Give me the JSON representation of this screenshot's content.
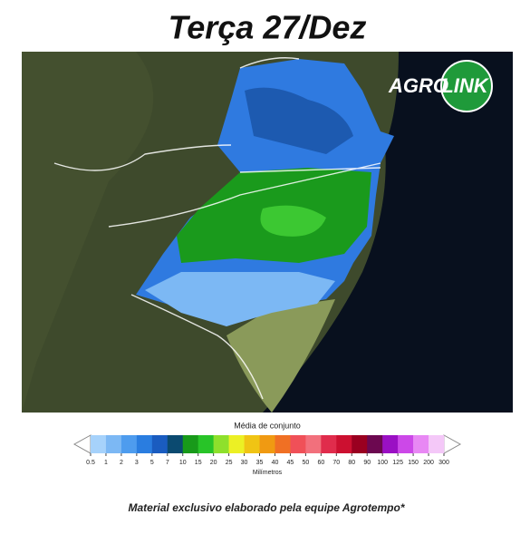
{
  "header": {
    "title": "Terça 27/Dez"
  },
  "logo": {
    "left": "AGRO",
    "right": "LINK"
  },
  "colorbar": {
    "title": "Média de conjunto",
    "ticks": [
      0.5,
      1,
      2,
      3,
      5,
      7,
      10,
      15,
      20,
      25,
      30,
      35,
      40,
      45,
      50,
      60,
      70,
      80,
      90,
      100,
      125,
      150,
      200,
      300
    ],
    "colors": [
      "#a6d2fb",
      "#7cb8f4",
      "#4e9cee",
      "#2a7de0",
      "#1a5cc0",
      "#0b4a70",
      "#189a1a",
      "#28c428",
      "#8ee02c",
      "#ecf024",
      "#f0c414",
      "#f09a12",
      "#f07024",
      "#f05058",
      "#f2707c",
      "#e02c4c",
      "#cc1030",
      "#9a0020",
      "#6c0850",
      "#9a10c4",
      "#cc48e8",
      "#e888f4",
      "#f4c8f8",
      "#d8d8d8",
      "#a8a8a8"
    ],
    "unit": "Milímetros"
  },
  "footer": {
    "text": "Material exclusivo elaborado pela equipe Agrotempo*"
  }
}
